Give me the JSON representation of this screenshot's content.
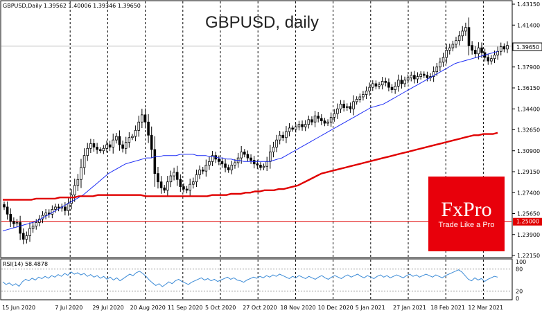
{
  "header": {
    "symbol_info": "GBPUSD,Daily  1.39562 1.40006 1.39346 1.39650",
    "title": "GBPUSD, daily"
  },
  "price_label": "1.39650",
  "logo": {
    "brand": "FxPro",
    "slogan": "Trade Like a Pro",
    "color": "#e8000b"
  },
  "rsi_label": "RSI(14) 58.4878",
  "chart_data": [
    {
      "type": "candlestick",
      "title": "GBPUSD, daily",
      "x_ticks": [
        "15 Jun 2020",
        "7 Jul 2020",
        "29 Jul 2020",
        "20 Aug 2020",
        "11 Sep 2020",
        "5 Oct 2020",
        "27 Oct 2020",
        "18 Nov 2020",
        "10 Dec 2020",
        "5 Jan 2021",
        "27 Jan 2021",
        "18 Feb 2021",
        "12 Mar 2021"
      ],
      "y_ticks": [
        1.2215,
        1.239,
        1.2565,
        1.274,
        1.2915,
        1.309,
        1.3265,
        1.344,
        1.3615,
        1.379,
        1.3965,
        1.414,
        1.4315
      ],
      "ylim": [
        1.2215,
        1.4315
      ],
      "current_price": 1.3965,
      "horizontal_line": 1.25,
      "series": [
        {
          "name": "close",
          "color": "#000000",
          "values": [
            1.262,
            1.256,
            1.25,
            1.248,
            1.249,
            1.24,
            1.235,
            1.238,
            1.244,
            1.246,
            1.249,
            1.252,
            1.255,
            1.257,
            1.256,
            1.26,
            1.262,
            1.261,
            1.262,
            1.259,
            1.265,
            1.272,
            1.28,
            1.285,
            1.295,
            1.305,
            1.311,
            1.315,
            1.312,
            1.31,
            1.309,
            1.311,
            1.314,
            1.312,
            1.318,
            1.321,
            1.314,
            1.311,
            1.316,
            1.32,
            1.321,
            1.326,
            1.333,
            1.339,
            1.333,
            1.322,
            1.31,
            1.29,
            1.283,
            1.278,
            1.276,
            1.283,
            1.288,
            1.291,
            1.285,
            1.279,
            1.277,
            1.276,
            1.281,
            1.283,
            1.289,
            1.293,
            1.292,
            1.297,
            1.3,
            1.305,
            1.302,
            1.3,
            1.298,
            1.295,
            1.293,
            1.297,
            1.299,
            1.303,
            1.308,
            1.306,
            1.303,
            1.301,
            1.298,
            1.297,
            1.295,
            1.296,
            1.3,
            1.308,
            1.312,
            1.318,
            1.322,
            1.32,
            1.325,
            1.328,
            1.327,
            1.329,
            1.331,
            1.329,
            1.331,
            1.335,
            1.333,
            1.338,
            1.336,
            1.334,
            1.332,
            1.333,
            1.337,
            1.34,
            1.344,
            1.348,
            1.345,
            1.346,
            1.344,
            1.35,
            1.352,
            1.354,
            1.356,
            1.359,
            1.362,
            1.365,
            1.363,
            1.364,
            1.367,
            1.366,
            1.362,
            1.36,
            1.363,
            1.368,
            1.365,
            1.368,
            1.37,
            1.372,
            1.369,
            1.371,
            1.373,
            1.372,
            1.37,
            1.371,
            1.375,
            1.379,
            1.383,
            1.387,
            1.393,
            1.395,
            1.398,
            1.401,
            1.405,
            1.409,
            1.412,
            1.397,
            1.393,
            1.39,
            1.395,
            1.391,
            1.387,
            1.384,
            1.386,
            1.389,
            1.392,
            1.396,
            1.394,
            1.397
          ]
        },
        {
          "name": "MA50",
          "color": "#1c2cf5",
          "values": [
            1.242,
            1.243,
            1.244,
            1.245,
            1.246,
            1.247,
            1.248,
            1.249,
            1.25,
            1.252,
            1.254,
            1.256,
            1.258,
            1.26,
            1.262,
            1.264,
            1.266,
            1.268,
            1.27,
            1.272,
            1.275,
            1.278,
            1.281,
            1.284,
            1.287,
            1.29,
            1.292,
            1.294,
            1.296,
            1.298,
            1.299,
            1.3,
            1.301,
            1.302,
            1.303,
            1.303,
            1.304,
            1.304,
            1.305,
            1.305,
            1.305,
            1.305,
            1.306,
            1.306,
            1.306,
            1.306,
            1.305,
            1.305,
            1.305,
            1.304,
            1.304,
            1.303,
            1.303,
            1.302,
            1.302,
            1.301,
            1.301,
            1.3,
            1.3,
            1.3,
            1.3,
            1.3,
            1.3,
            1.3,
            1.301,
            1.302,
            1.303,
            1.305,
            1.307,
            1.309,
            1.311,
            1.313,
            1.315,
            1.317,
            1.319,
            1.321,
            1.323,
            1.325,
            1.327,
            1.329,
            1.331,
            1.333,
            1.335,
            1.337,
            1.339,
            1.341,
            1.343,
            1.345,
            1.346,
            1.347,
            1.348,
            1.35,
            1.352,
            1.354,
            1.356,
            1.358,
            1.36,
            1.362,
            1.364,
            1.366,
            1.368,
            1.37,
            1.372,
            1.374,
            1.376,
            1.378,
            1.38,
            1.382,
            1.383,
            1.384,
            1.385,
            1.386,
            1.387,
            1.388,
            1.389,
            1.39,
            1.391,
            1.392
          ]
        },
        {
          "name": "MA200",
          "color": "#e00000",
          "values": [
            1.268,
            1.268,
            1.268,
            1.268,
            1.268,
            1.268,
            1.268,
            1.269,
            1.269,
            1.269,
            1.269,
            1.269,
            1.27,
            1.27,
            1.27,
            1.27,
            1.271,
            1.271,
            1.271,
            1.271,
            1.272,
            1.272,
            1.272,
            1.272,
            1.272,
            1.272,
            1.272,
            1.272,
            1.272,
            1.272,
            1.271,
            1.271,
            1.271,
            1.271,
            1.271,
            1.271,
            1.271,
            1.271,
            1.271,
            1.271,
            1.271,
            1.271,
            1.271,
            1.271,
            1.272,
            1.272,
            1.272,
            1.272,
            1.273,
            1.273,
            1.273,
            1.274,
            1.274,
            1.275,
            1.275,
            1.276,
            1.276,
            1.276,
            1.277,
            1.277,
            1.278,
            1.279,
            1.28,
            1.282,
            1.284,
            1.286,
            1.288,
            1.29,
            1.291,
            1.292,
            1.293,
            1.294,
            1.295,
            1.296,
            1.297,
            1.298,
            1.299,
            1.3,
            1.301,
            1.302,
            1.303,
            1.304,
            1.305,
            1.306,
            1.307,
            1.308,
            1.309,
            1.31,
            1.311,
            1.312,
            1.313,
            1.314,
            1.315,
            1.316,
            1.317,
            1.318,
            1.319,
            1.32,
            1.321,
            1.322,
            1.322,
            1.323,
            1.323,
            1.323,
            1.324
          ]
        }
      ]
    },
    {
      "type": "line",
      "title": "RSI(14) 58.4878",
      "y_ticks": [
        100,
        80,
        20,
        0
      ],
      "ylim": [
        0,
        100
      ],
      "series": [
        {
          "name": "RSI(14)",
          "color": "#3a8ad6",
          "values": [
            45,
            38,
            42,
            35,
            40,
            33,
            45,
            52,
            48,
            55,
            50,
            58,
            54,
            60,
            55,
            62,
            58,
            65,
            60,
            68,
            63,
            72,
            66,
            70,
            64,
            68,
            60,
            65,
            58,
            62,
            55,
            60,
            52,
            58,
            50,
            56,
            48,
            54,
            60,
            66,
            62,
            70,
            74,
            68,
            60,
            50,
            42,
            35,
            40,
            32,
            38,
            45,
            40,
            48,
            52,
            46,
            42,
            38,
            44,
            48,
            52,
            56,
            50,
            54,
            48,
            52,
            46,
            50,
            54,
            58,
            52,
            56,
            50,
            48,
            44,
            50,
            54,
            58,
            55,
            60,
            56,
            62,
            58,
            64,
            60,
            66,
            62,
            58,
            54,
            60,
            56,
            62,
            58,
            54,
            60,
            56,
            52,
            58,
            62,
            56,
            52,
            58,
            62,
            58,
            54,
            60,
            64,
            58,
            62,
            66,
            60,
            56,
            62,
            58,
            54,
            60,
            64,
            58,
            62,
            56,
            60,
            64,
            60,
            56,
            62,
            66,
            60,
            64,
            58,
            62,
            66,
            62,
            58,
            64,
            60,
            56,
            62,
            66,
            70,
            74,
            78,
            72,
            62,
            52,
            48,
            56,
            50,
            54,
            46,
            52,
            56,
            60,
            58
          ]
        }
      ]
    }
  ]
}
